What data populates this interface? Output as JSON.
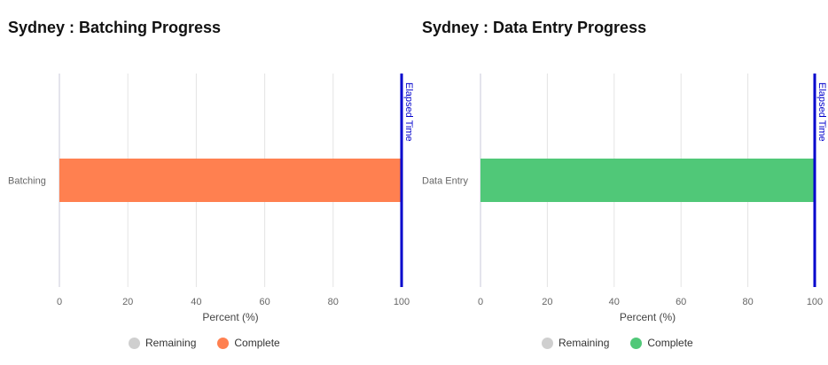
{
  "colors": {
    "remaining": "#cfcfcf",
    "grid": "#e4e4e4",
    "axis": "#c8c8d8",
    "elapsed": "#0000cc"
  },
  "chart_data": [
    {
      "type": "bar",
      "orientation": "horizontal",
      "title": "Sydney : Batching Progress",
      "categories": [
        "Batching"
      ],
      "series": [
        {
          "name": "Remaining",
          "values": [
            0
          ],
          "color": "#cfcfcf"
        },
        {
          "name": "Complete",
          "values": [
            100
          ],
          "color": "#ff8050"
        }
      ],
      "xlabel": "Percent (%)",
      "xlim": [
        0,
        100
      ],
      "xticks": [
        "0",
        "20",
        "40",
        "60",
        "80",
        "100"
      ],
      "grid": true,
      "legend": "bottom",
      "annotation": {
        "label": "Elapsed Time",
        "x": 100
      }
    },
    {
      "type": "bar",
      "orientation": "horizontal",
      "title": "Sydney : Data Entry Progress",
      "categories": [
        "Data Entry"
      ],
      "series": [
        {
          "name": "Remaining",
          "values": [
            0
          ],
          "color": "#cfcfcf"
        },
        {
          "name": "Complete",
          "values": [
            100
          ],
          "color": "#50c878"
        }
      ],
      "xlabel": "Percent (%)",
      "xlim": [
        0,
        100
      ],
      "xticks": [
        "0",
        "20",
        "40",
        "60",
        "80",
        "100"
      ],
      "grid": true,
      "legend": "bottom",
      "annotation": {
        "label": "Elapsed Time",
        "x": 100
      }
    }
  ]
}
